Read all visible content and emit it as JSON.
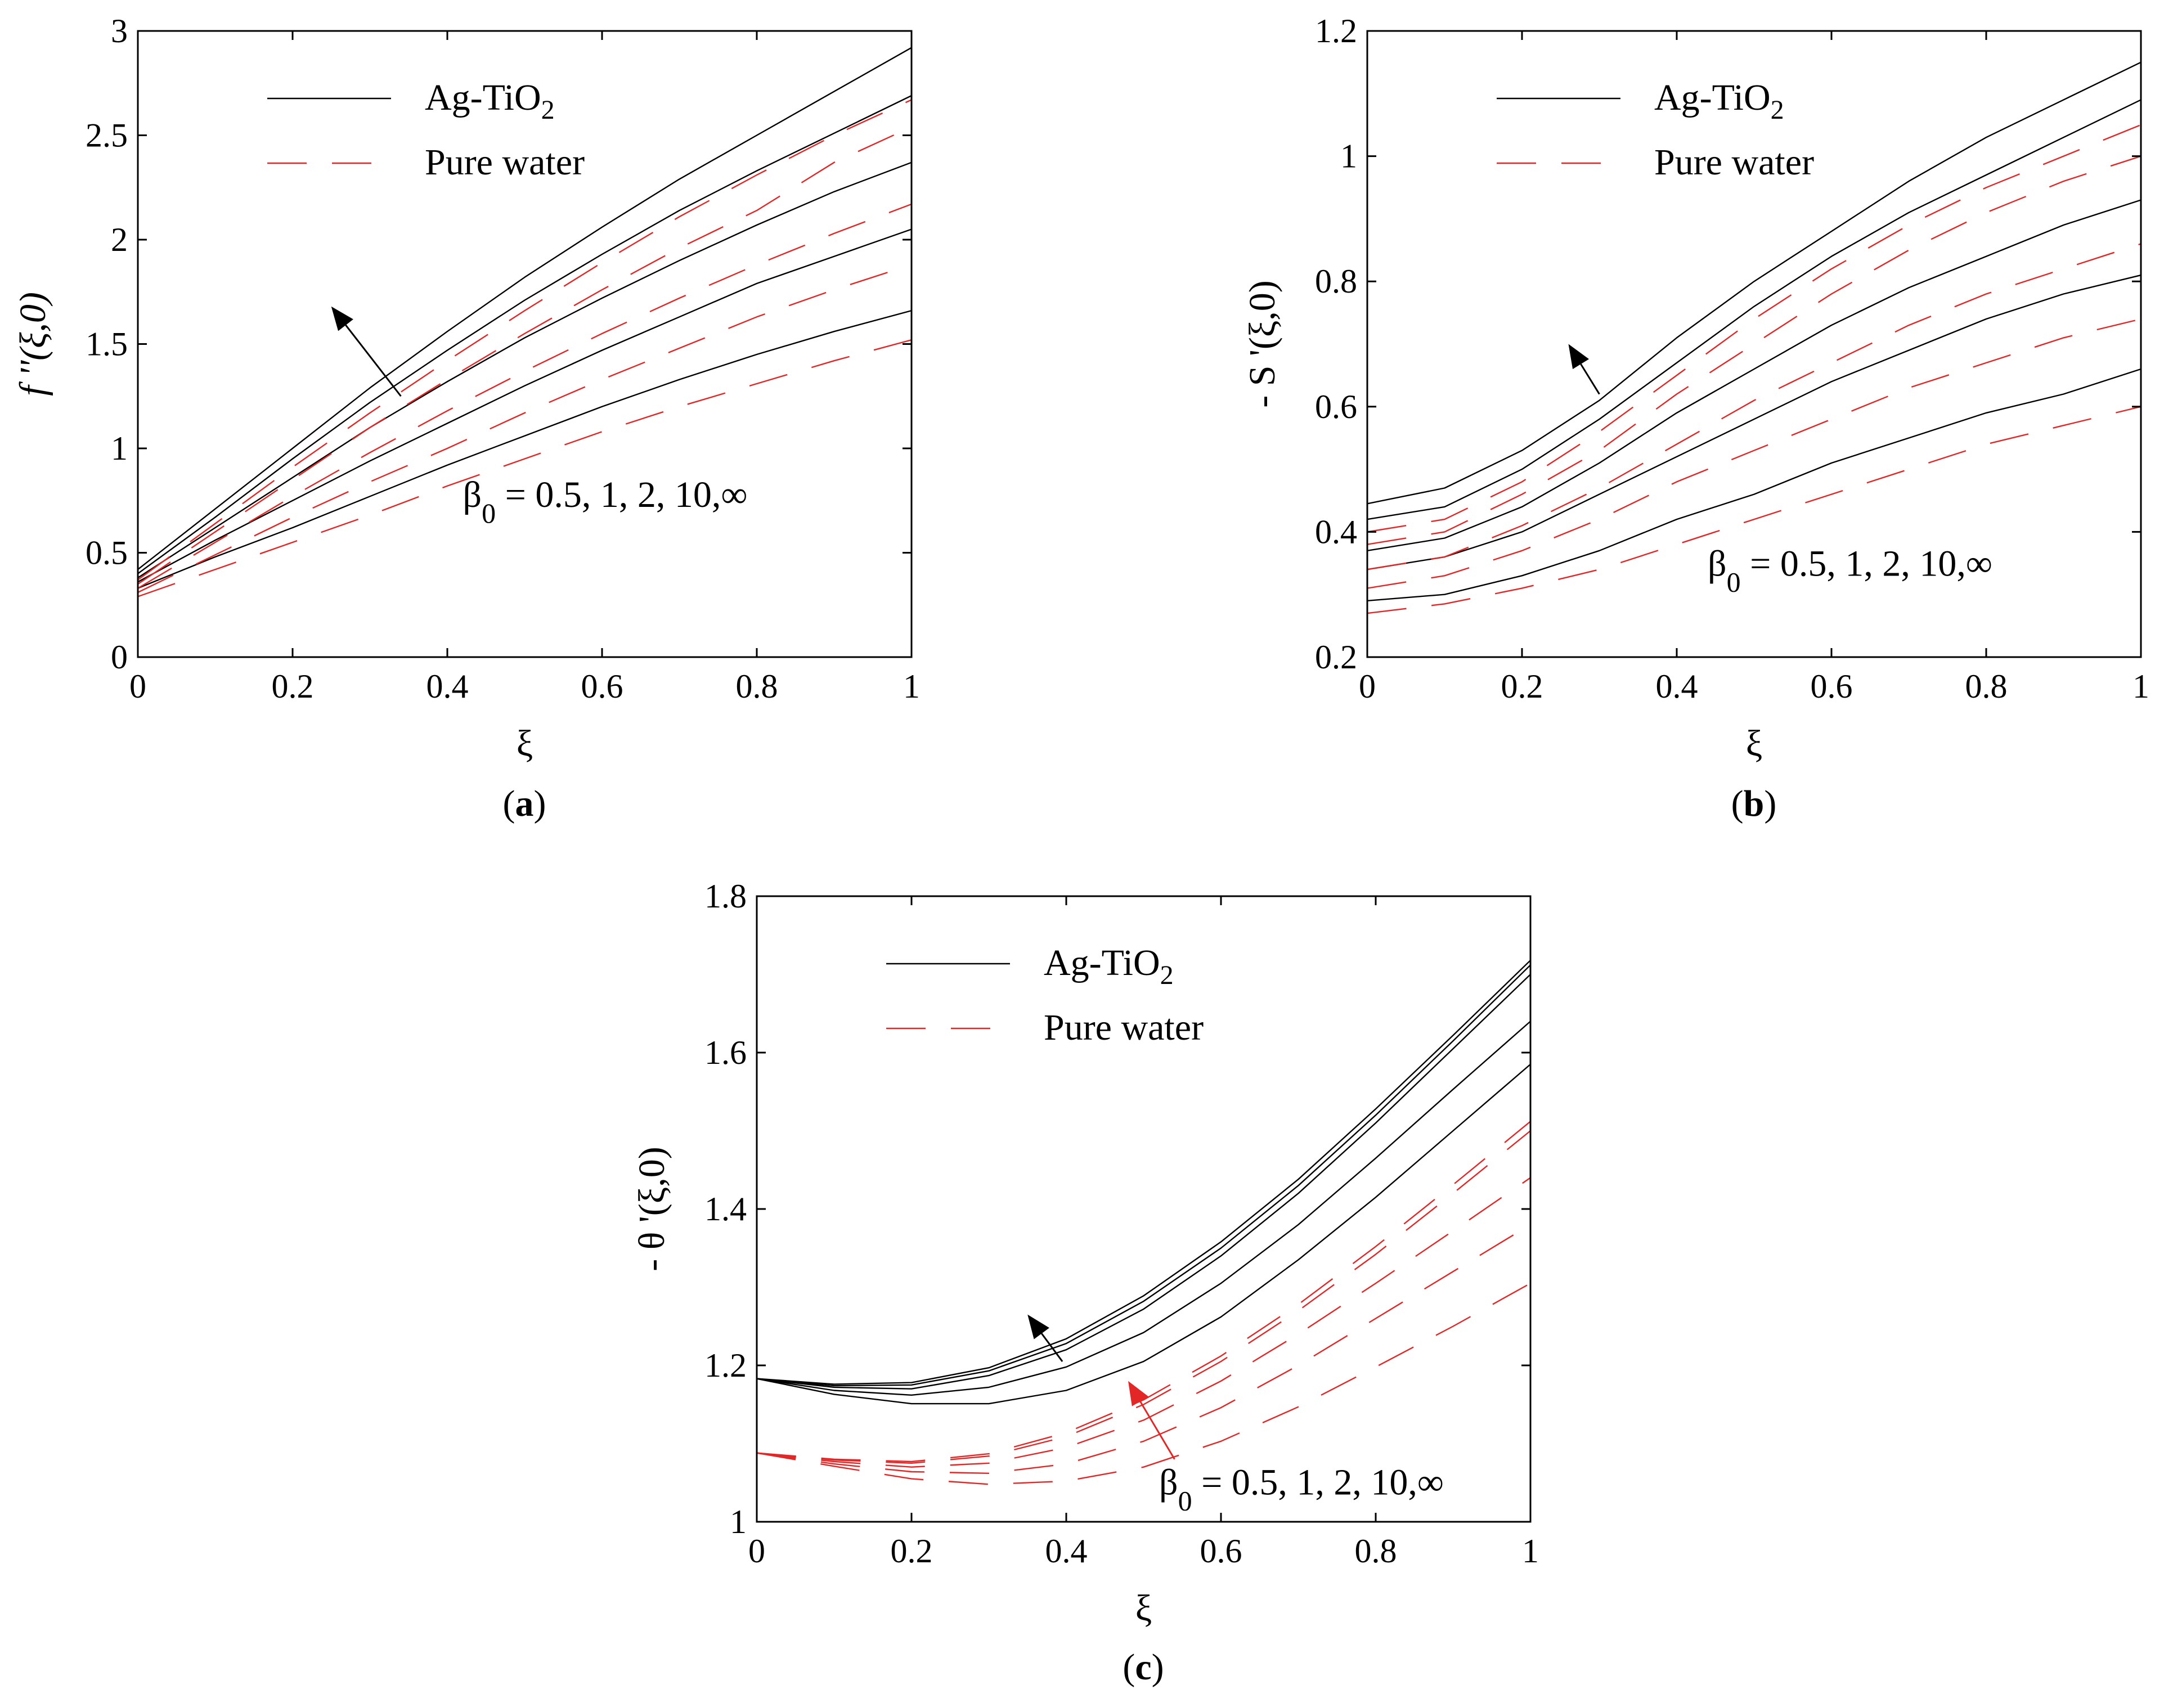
{
  "figure": {
    "colors": {
      "nanofluid": "#000000",
      "water": "#e32626"
    }
  },
  "chart_data": [
    {
      "type": "line",
      "panel": "a",
      "caption": {
        "open": "(",
        "letter": "a",
        "close": ")"
      },
      "ylabel": "f ''(ξ,0)",
      "xlabel": "ξ",
      "xlim": [
        0,
        1
      ],
      "ylim": [
        0,
        3
      ],
      "xticks": [
        0,
        0.2,
        0.4,
        0.6,
        0.8,
        1
      ],
      "xtick_labels": [
        "0",
        "0.2",
        "0.4",
        "0.6",
        "0.8",
        "1"
      ],
      "yticks": [
        0,
        0.5,
        1,
        1.5,
        2,
        2.5,
        3
      ],
      "ytick_labels": [
        "0",
        "0.5",
        "1",
        "1.5",
        "2",
        "2.5",
        "3"
      ],
      "legend": {
        "position": "top-left",
        "entries": [
          {
            "text": "Ag-TiO",
            "sub": "2",
            "style": "solid"
          },
          {
            "text": "Pure water",
            "sub": "",
            "style": "dashed"
          }
        ]
      },
      "annotation": {
        "greek": "β",
        "sub": "0",
        "text": " = 0.5, 1, 2, 10,∞",
        "x": 0.42,
        "y": 0.72
      },
      "arrows": [
        {
          "from": [
            0.34,
            1.25
          ],
          "to": [
            0.25,
            1.68
          ],
          "color": "nanofluid"
        }
      ],
      "x": [
        0,
        0.1,
        0.2,
        0.3,
        0.4,
        0.5,
        0.6,
        0.7,
        0.8,
        0.9,
        1.0
      ],
      "series": [
        {
          "name": "Ag-TiO2, β0 = 0.5",
          "group": "nanofluid",
          "values": [
            0.33,
            0.48,
            0.62,
            0.77,
            0.92,
            1.06,
            1.2,
            1.33,
            1.45,
            1.56,
            1.66
          ]
        },
        {
          "name": "Ag-TiO2, β0 = 1",
          "group": "nanofluid",
          "values": [
            0.36,
            0.56,
            0.75,
            0.94,
            1.12,
            1.3,
            1.47,
            1.63,
            1.79,
            1.92,
            2.05
          ]
        },
        {
          "name": "Ag-TiO2, β0 = 2",
          "group": "nanofluid",
          "values": [
            0.38,
            0.62,
            0.86,
            1.1,
            1.32,
            1.53,
            1.72,
            1.9,
            2.07,
            2.23,
            2.37
          ]
        },
        {
          "name": "Ag-TiO2, β0 = 10",
          "group": "nanofluid",
          "values": [
            0.4,
            0.67,
            0.95,
            1.22,
            1.47,
            1.71,
            1.93,
            2.14,
            2.33,
            2.51,
            2.69
          ]
        },
        {
          "name": "Ag-TiO2, β0 = ∞",
          "group": "nanofluid",
          "values": [
            0.42,
            0.71,
            1.0,
            1.29,
            1.56,
            1.82,
            2.06,
            2.29,
            2.5,
            2.71,
            2.92
          ]
        },
        {
          "name": "Pure water, β0 = 0.5",
          "group": "water",
          "values": [
            0.29,
            0.42,
            0.55,
            0.68,
            0.82,
            0.95,
            1.08,
            1.2,
            1.31,
            1.42,
            1.52
          ]
        },
        {
          "name": "Pure water, β0 = 1",
          "group": "water",
          "values": [
            0.31,
            0.49,
            0.67,
            0.84,
            1.0,
            1.17,
            1.33,
            1.48,
            1.63,
            1.76,
            1.88
          ]
        },
        {
          "name": "Pure water, β0 = 2",
          "group": "water",
          "values": [
            0.33,
            0.55,
            0.77,
            0.98,
            1.18,
            1.37,
            1.55,
            1.72,
            1.88,
            2.03,
            2.17
          ]
        },
        {
          "name": "Pure water, β0 = 10",
          "group": "water",
          "values": [
            0.35,
            0.6,
            0.85,
            1.1,
            1.33,
            1.55,
            1.76,
            1.96,
            2.14,
            2.37,
            2.54
          ]
        },
        {
          "name": "Pure water, β0 = ∞",
          "group": "water",
          "values": [
            0.37,
            0.64,
            0.91,
            1.17,
            1.42,
            1.66,
            1.89,
            2.11,
            2.31,
            2.5,
            2.67
          ]
        }
      ]
    },
    {
      "type": "line",
      "panel": "b",
      "caption": {
        "open": "(",
        "letter": "b",
        "close": ")"
      },
      "ylabel": "- S '(ξ,0)",
      "xlabel": "ξ",
      "xlim": [
        0,
        1
      ],
      "ylim": [
        0.2,
        1.2
      ],
      "xticks": [
        0,
        0.2,
        0.4,
        0.6,
        0.8,
        1
      ],
      "xtick_labels": [
        "0",
        "0.2",
        "0.4",
        "0.6",
        "0.8",
        "1"
      ],
      "yticks": [
        0.2,
        0.4,
        0.6,
        0.8,
        1,
        1.2
      ],
      "ytick_labels": [
        "0.2",
        "0.4",
        "0.6",
        "0.8",
        "1",
        "1.2"
      ],
      "legend": {
        "position": "top-left",
        "entries": [
          {
            "text": "Ag-TiO",
            "sub": "2",
            "style": "solid"
          },
          {
            "text": "Pure water",
            "sub": "",
            "style": "dashed"
          }
        ]
      },
      "annotation": {
        "greek": "β",
        "sub": "0",
        "text": " = 0.5, 1, 2, 10,∞",
        "x": 0.44,
        "y": 0.33
      },
      "arrows": [
        {
          "from": [
            0.3,
            0.62
          ],
          "to": [
            0.26,
            0.7
          ],
          "color": "nanofluid"
        }
      ],
      "x": [
        0,
        0.1,
        0.2,
        0.3,
        0.4,
        0.5,
        0.6,
        0.7,
        0.8,
        0.9,
        1.0
      ],
      "series": [
        {
          "name": "Ag-TiO2, β0 = 0.5",
          "group": "nanofluid",
          "values": [
            0.29,
            0.3,
            0.33,
            0.37,
            0.42,
            0.46,
            0.51,
            0.55,
            0.59,
            0.62,
            0.66
          ]
        },
        {
          "name": "Ag-TiO2, β0 = 1",
          "group": "nanofluid",
          "values": [
            0.34,
            0.36,
            0.4,
            0.46,
            0.52,
            0.58,
            0.64,
            0.69,
            0.74,
            0.78,
            0.81
          ]
        },
        {
          "name": "Ag-TiO2, β0 = 2",
          "group": "nanofluid",
          "values": [
            0.37,
            0.39,
            0.44,
            0.51,
            0.59,
            0.66,
            0.73,
            0.79,
            0.84,
            0.89,
            0.93
          ]
        },
        {
          "name": "Ag-TiO2, β0 = 10",
          "group": "nanofluid",
          "values": [
            0.42,
            0.44,
            0.5,
            0.58,
            0.67,
            0.76,
            0.84,
            0.91,
            0.97,
            1.03,
            1.09
          ]
        },
        {
          "name": "Ag-TiO2, β0 = ∞",
          "group": "nanofluid",
          "values": [
            0.445,
            0.47,
            0.53,
            0.61,
            0.71,
            0.8,
            0.88,
            0.96,
            1.03,
            1.09,
            1.15
          ]
        },
        {
          "name": "Pure water, β0 = 0.5",
          "group": "water",
          "values": [
            0.27,
            0.285,
            0.31,
            0.34,
            0.38,
            0.42,
            0.46,
            0.5,
            0.54,
            0.57,
            0.6
          ]
        },
        {
          "name": "Pure water, β0 = 1",
          "group": "water",
          "values": [
            0.31,
            0.33,
            0.37,
            0.42,
            0.48,
            0.53,
            0.58,
            0.63,
            0.67,
            0.71,
            0.74
          ]
        },
        {
          "name": "Pure water, β0 = 2",
          "group": "water",
          "values": [
            0.34,
            0.36,
            0.41,
            0.47,
            0.54,
            0.61,
            0.67,
            0.73,
            0.78,
            0.82,
            0.86
          ]
        },
        {
          "name": "Pure water, β0 = 10",
          "group": "water",
          "values": [
            0.38,
            0.4,
            0.46,
            0.53,
            0.62,
            0.7,
            0.78,
            0.85,
            0.91,
            0.96,
            1.0
          ]
        },
        {
          "name": "Pure water, β0 = ∞",
          "group": "water",
          "values": [
            0.4,
            0.42,
            0.48,
            0.56,
            0.65,
            0.74,
            0.82,
            0.89,
            0.95,
            1.0,
            1.05
          ]
        }
      ]
    },
    {
      "type": "line",
      "panel": "c",
      "caption": {
        "open": "(",
        "letter": "c",
        "close": ")"
      },
      "ylabel": "- θ '(ξ,0)",
      "xlabel": "ξ",
      "xlim": [
        0,
        1
      ],
      "ylim": [
        1,
        1.8
      ],
      "xticks": [
        0,
        0.2,
        0.4,
        0.6,
        0.8,
        1
      ],
      "xtick_labels": [
        "0",
        "0.2",
        "0.4",
        "0.6",
        "0.8",
        "1"
      ],
      "yticks": [
        1,
        1.2,
        1.4,
        1.6,
        1.8
      ],
      "ytick_labels": [
        "1",
        "1.2",
        "1.4",
        "1.6",
        "1.8"
      ],
      "legend": {
        "position": "top-left",
        "entries": [
          {
            "text": "Ag-TiO",
            "sub": "2",
            "style": "solid"
          },
          {
            "text": "Pure water",
            "sub": "",
            "style": "dashed"
          }
        ]
      },
      "annotation": {
        "greek": "β",
        "sub": "0",
        "text": " = 0.5, 1, 2, 10,∞",
        "x": 0.52,
        "y": 1.035
      },
      "arrows": [
        {
          "from": [
            0.395,
            1.205
          ],
          "to": [
            0.35,
            1.265
          ],
          "color": "nanofluid"
        },
        {
          "from": [
            0.54,
            1.08
          ],
          "to": [
            0.48,
            1.18
          ],
          "color": "water"
        }
      ],
      "x": [
        0,
        0.1,
        0.2,
        0.3,
        0.4,
        0.5,
        0.6,
        0.7,
        0.8,
        0.9,
        1.0
      ],
      "series": [
        {
          "name": "Ag-TiO2, β0 = 0.5",
          "group": "nanofluid",
          "values": [
            1.183,
            1.163,
            1.151,
            1.151,
            1.168,
            1.205,
            1.262,
            1.335,
            1.415,
            1.5,
            1.585
          ]
        },
        {
          "name": "Ag-TiO2, β0 = 1",
          "group": "nanofluid",
          "values": [
            1.183,
            1.168,
            1.162,
            1.172,
            1.198,
            1.242,
            1.305,
            1.38,
            1.465,
            1.553,
            1.64
          ]
        },
        {
          "name": "Ag-TiO2, β0 = 2",
          "group": "nanofluid",
          "values": [
            1.183,
            1.172,
            1.17,
            1.187,
            1.22,
            1.272,
            1.34,
            1.42,
            1.51,
            1.605,
            1.7
          ]
        },
        {
          "name": "Ag-TiO2, β0 = 10",
          "group": "nanofluid",
          "values": [
            1.183,
            1.174,
            1.175,
            1.193,
            1.228,
            1.282,
            1.35,
            1.43,
            1.52,
            1.615,
            1.712
          ]
        },
        {
          "name": "Ag-TiO2, β0 = ∞",
          "group": "nanofluid",
          "values": [
            1.183,
            1.176,
            1.178,
            1.197,
            1.234,
            1.289,
            1.358,
            1.438,
            1.528,
            1.622,
            1.718
          ]
        },
        {
          "name": "Pure water, β0 = 0.5",
          "group": "water",
          "values": [
            1.088,
            1.071,
            1.055,
            1.048,
            1.052,
            1.07,
            1.103,
            1.147,
            1.198,
            1.25,
            1.305
          ]
        },
        {
          "name": "Pure water, β0 = 1",
          "group": "water",
          "values": [
            1.088,
            1.074,
            1.064,
            1.062,
            1.074,
            1.103,
            1.146,
            1.2,
            1.26,
            1.32,
            1.38
          ]
        },
        {
          "name": "Pure water, β0 = 2",
          "group": "water",
          "values": [
            1.088,
            1.077,
            1.07,
            1.075,
            1.095,
            1.13,
            1.18,
            1.24,
            1.305,
            1.372,
            1.44
          ]
        },
        {
          "name": "Pure water, β0 = 10",
          "group": "water",
          "values": [
            1.088,
            1.079,
            1.075,
            1.084,
            1.109,
            1.15,
            1.205,
            1.27,
            1.342,
            1.42,
            1.5
          ]
        },
        {
          "name": "Pure water, β0 = ∞",
          "group": "water",
          "values": [
            1.088,
            1.08,
            1.077,
            1.087,
            1.114,
            1.156,
            1.212,
            1.278,
            1.352,
            1.431,
            1.512
          ]
        }
      ]
    }
  ]
}
